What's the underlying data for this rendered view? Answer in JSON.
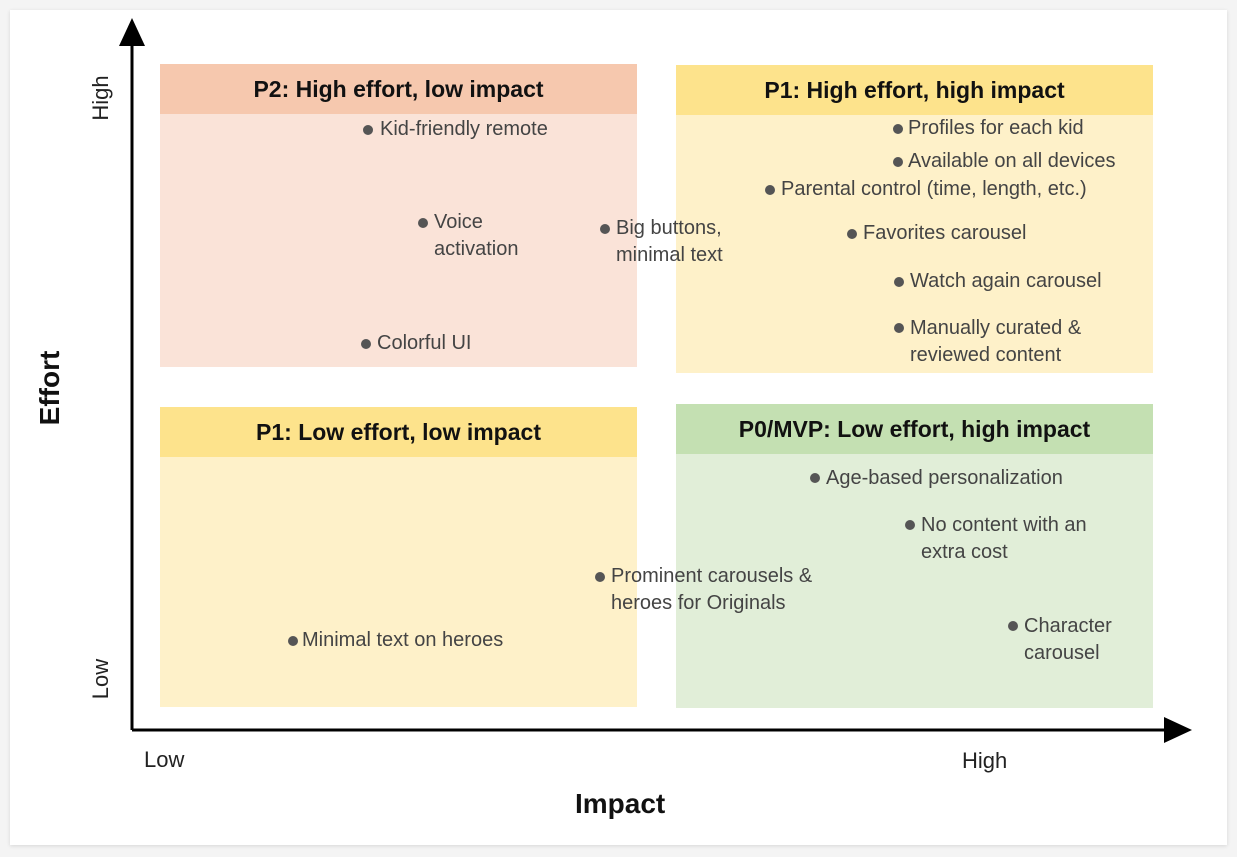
{
  "axes": {
    "x_title": "Impact",
    "y_title": "Effort",
    "x_low": "Low",
    "x_high": "High",
    "y_low": "Low",
    "y_high": "High"
  },
  "colors": {
    "p2_head": "#f6c8ae",
    "p2_body": "#fae3d8",
    "p1_head": "#fde38c",
    "p1_body": "#fef1c9",
    "p0_head": "#c4e0b2",
    "p0_body": "#e1eed8"
  },
  "quadrants": {
    "top_left": {
      "title": "P2: High effort, low impact",
      "items": [
        "Kid-friendly remote",
        "Voice\nactivation",
        "Colorful UI"
      ]
    },
    "top_right": {
      "title": "P1: High effort, high impact",
      "items": [
        "Profiles for each kid",
        "Available on all devices",
        "Parental control (time, length, etc.)",
        "Favorites carousel",
        "Watch again carousel",
        "Manually curated &\nreviewed content"
      ]
    },
    "bottom_left": {
      "title": "P1: Low effort, low impact",
      "items": [
        "Minimal text on heroes"
      ]
    },
    "bottom_right": {
      "title": "P0/MVP: Low effort, high impact",
      "items": [
        "Age-based personalization",
        "No content with an\nextra cost",
        "Character\ncarousel"
      ]
    }
  },
  "boundary_items": [
    "Big buttons,\nminimal text",
    "Prominent carousels &\nheroes for Originals"
  ]
}
